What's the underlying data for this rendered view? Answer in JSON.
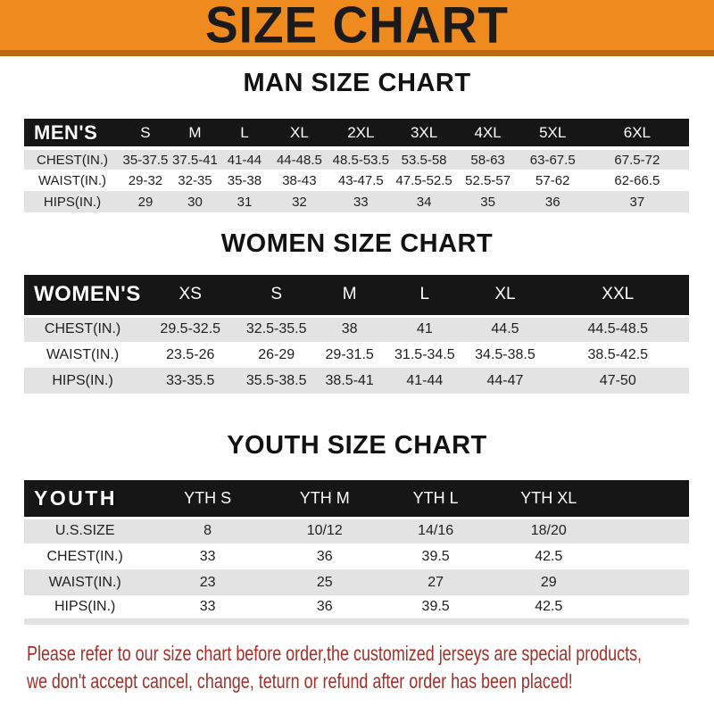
{
  "banner": {
    "title": "SIZE CHART",
    "bg_color": "#EF8A1F",
    "accent_color": "#BE6A14"
  },
  "sections": [
    {
      "id": "men",
      "heading": "MAN SIZE CHART",
      "table": {
        "label": "MEN'S",
        "columns": [
          "S",
          "M",
          "L",
          "XL",
          "2XL",
          "3XL",
          "4XL",
          "5XL",
          "6XL"
        ],
        "rows": [
          {
            "label": "CHEST(IN.)",
            "values": [
              "35-37.5",
              "37.5-41",
              "41-44",
              "44-48.5",
              "48.5-53.5",
              "53.5-58",
              "58-63",
              "63-67.5",
              "67.5-72"
            ]
          },
          {
            "label": "WAIST(IN.)",
            "values": [
              "29-32",
              "32-35",
              "35-38",
              "38-43",
              "43-47.5",
              "47.5-52.5",
              "52.5-57",
              "57-62",
              "62-66.5"
            ]
          },
          {
            "label": "HIPS(IN.)",
            "values": [
              "29",
              "30",
              "31",
              "32",
              "33",
              "34",
              "35",
              "36",
              "37"
            ]
          }
        ]
      }
    },
    {
      "id": "women",
      "heading": "WOMEN SIZE CHART",
      "table": {
        "label": "WOMEN'S",
        "columns": [
          "XS",
          "S",
          "M",
          "L",
          "XL",
          "XXL"
        ],
        "rows": [
          {
            "label": "CHEST(IN.)",
            "values": [
              "29.5-32.5",
              "32.5-35.5",
              "38",
              "41",
              "44.5",
              "44.5-48.5"
            ]
          },
          {
            "label": "WAIST(IN.)",
            "values": [
              "23.5-26",
              "26-29",
              "29-31.5",
              "31.5-34.5",
              "34.5-38.5",
              "38.5-42.5"
            ]
          },
          {
            "label": "HIPS(IN.)",
            "values": [
              "33-35.5",
              "35.5-38.5",
              "38.5-41",
              "41-44",
              "44-47",
              "47-50"
            ]
          }
        ]
      }
    },
    {
      "id": "youth",
      "heading": "YOUTH SIZE CHART",
      "table": {
        "label": "YOUTH",
        "columns": [
          "YTH S",
          "YTH M",
          "YTH L",
          "YTH XL"
        ],
        "rows": [
          {
            "label": "U.S.SIZE",
            "values": [
              "8",
              "10/12",
              "14/16",
              "18/20"
            ]
          },
          {
            "label": "CHEST(IN.)",
            "values": [
              "33",
              "36",
              "39.5",
              "42.5"
            ]
          },
          {
            "label": "WAIST(IN.)",
            "values": [
              "23",
              "25",
              "27",
              "29"
            ]
          },
          {
            "label": "HIPS(IN.)",
            "values": [
              "33",
              "36",
              "39.5",
              "42.5"
            ]
          }
        ]
      }
    }
  ],
  "footer": {
    "text_color": "#A33029",
    "lines": [
      "Please refer to our size chart before order,the customized jerseys are special products,",
      "we don't accept cancel, change, teturn or refund after order has been placed!"
    ]
  },
  "table_colors": {
    "header_bg": "#161616",
    "header_text": "#ffffff",
    "stripe_row": "#E3E3E3"
  }
}
